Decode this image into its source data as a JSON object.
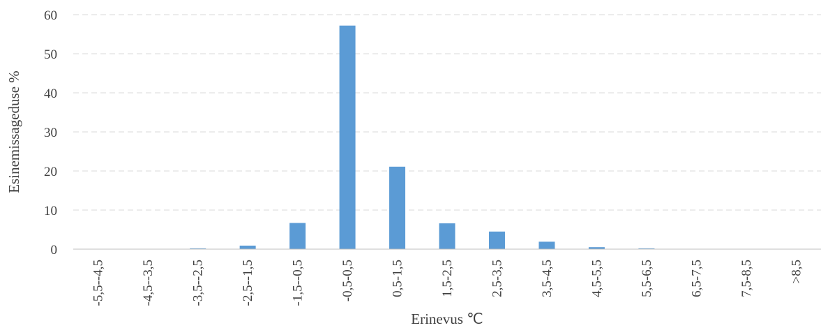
{
  "chart_data": {
    "type": "bar",
    "title": "",
    "xlabel": "Erinevus ℃",
    "ylabel": "Esinemissageduse %",
    "categories": [
      "-5,5--4,5",
      "-4,5--3,5",
      "-3,5--2,5",
      "-2,5--1,5",
      "-1,5--0,5",
      "-0,5-0,5",
      "0,5-1,5",
      "1,5-2,5",
      "2,5-3,5",
      "3,5-4,5",
      "4,5-5,5",
      "5,5-6,5",
      "6,5-7,5",
      "7,5-8,5",
      ">8,5"
    ],
    "values": [
      0,
      0,
      0.2,
      0.9,
      6.7,
      57.2,
      21.1,
      6.6,
      4.5,
      1.9,
      0.5,
      0.2,
      0,
      0,
      0
    ],
    "ylim": [
      0,
      60
    ],
    "yticks": [
      0,
      10,
      20,
      30,
      40,
      50,
      60
    ],
    "grid": "horizontal-dashed",
    "bar_color": "#5b9bd5",
    "grid_color": "#d9d9d9",
    "axis_color": "#bfbfbf"
  }
}
